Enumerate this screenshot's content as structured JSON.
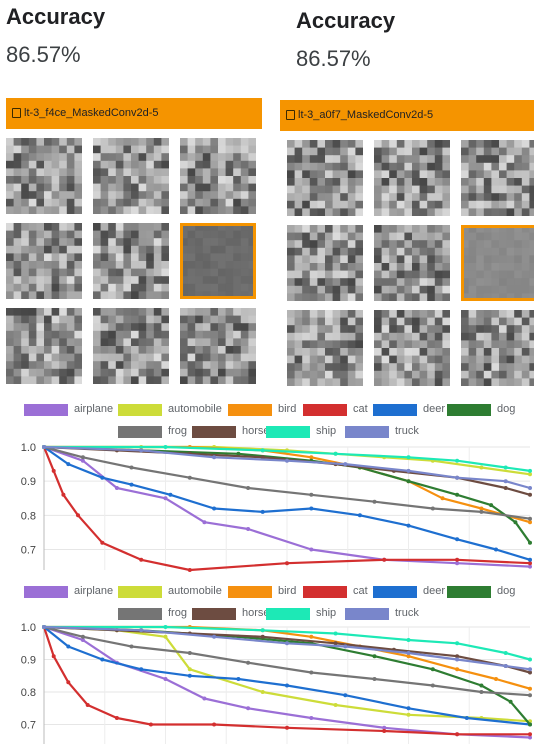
{
  "panels": [
    {
      "accuracy_title": "Accuracy",
      "accuracy_value": "86.57%",
      "run_name": "lt-3_f4ce_MaskedConv2d-5",
      "filters": [
        {
          "seed": 11,
          "selected": false
        },
        {
          "seed": 23,
          "selected": false
        },
        {
          "seed": 37,
          "selected": false
        },
        {
          "seed": 41,
          "selected": false
        },
        {
          "seed": 53,
          "selected": false
        },
        {
          "seed": 67,
          "selected": true,
          "masked": true,
          "tone": "#6b6b6b"
        },
        {
          "seed": 71,
          "selected": false
        },
        {
          "seed": 83,
          "selected": false
        },
        {
          "seed": 97,
          "selected": false
        }
      ]
    },
    {
      "accuracy_title": "Accuracy",
      "accuracy_value": "86.57%",
      "run_name": "lt-3_a0f7_MaskedConv2d-5",
      "filters": [
        {
          "seed": 13,
          "selected": false
        },
        {
          "seed": 29,
          "selected": false
        },
        {
          "seed": 31,
          "selected": false
        },
        {
          "seed": 43,
          "selected": false
        },
        {
          "seed": 59,
          "selected": false
        },
        {
          "seed": 61,
          "selected": true,
          "masked": true,
          "tone": "#8a8a8a"
        },
        {
          "seed": 73,
          "selected": false
        },
        {
          "seed": 89,
          "selected": false
        },
        {
          "seed": 101,
          "selected": false
        }
      ]
    }
  ],
  "legend": [
    {
      "name": "airplane",
      "color": "#9b6fd6"
    },
    {
      "name": "automobile",
      "color": "#cddc39"
    },
    {
      "name": "bird",
      "color": "#f5900f"
    },
    {
      "name": "cat",
      "color": "#d32f2f"
    },
    {
      "name": "deer",
      "color": "#1e6fd0"
    },
    {
      "name": "dog",
      "color": "#2e7d32"
    },
    {
      "name": "frog",
      "color": "#757575"
    },
    {
      "name": "horse",
      "color": "#6d4c41"
    },
    {
      "name": "ship",
      "color": "#1de9b6"
    },
    {
      "name": "truck",
      "color": "#7986cb"
    }
  ],
  "chart_data": [
    {
      "type": "line",
      "ylim": [
        0.64,
        1.0
      ],
      "yticks": [
        "1.0",
        "0.9",
        "0.8",
        "0.7"
      ],
      "ytick_values": [
        1.0,
        0.9,
        0.8,
        0.7
      ],
      "xlim": [
        0,
        1
      ],
      "grid": true,
      "series": [
        {
          "name": "airplane",
          "x": [
            0,
            0.08,
            0.15,
            0.25,
            0.33,
            0.42,
            0.55,
            0.7,
            0.85,
            1.0
          ],
          "values": [
            1.0,
            0.96,
            0.88,
            0.85,
            0.78,
            0.76,
            0.7,
            0.67,
            0.66,
            0.65
          ]
        },
        {
          "name": "automobile",
          "x": [
            0,
            0.2,
            0.35,
            0.5,
            0.6,
            0.7,
            0.8,
            0.9,
            1.0
          ],
          "values": [
            1.0,
            1.0,
            1.0,
            0.99,
            0.98,
            0.97,
            0.96,
            0.94,
            0.92
          ]
        },
        {
          "name": "bird",
          "x": [
            0,
            0.3,
            0.45,
            0.55,
            0.65,
            0.75,
            0.82,
            0.9,
            1.0
          ],
          "values": [
            1.0,
            1.0,
            0.99,
            0.97,
            0.94,
            0.9,
            0.85,
            0.82,
            0.78
          ]
        },
        {
          "name": "cat",
          "x": [
            0,
            0.02,
            0.04,
            0.07,
            0.12,
            0.2,
            0.3,
            0.5,
            0.7,
            0.85,
            1.0
          ],
          "values": [
            1.0,
            0.93,
            0.86,
            0.8,
            0.72,
            0.67,
            0.64,
            0.66,
            0.67,
            0.67,
            0.66
          ]
        },
        {
          "name": "deer",
          "x": [
            0,
            0.05,
            0.12,
            0.18,
            0.26,
            0.35,
            0.45,
            0.55,
            0.65,
            0.75,
            0.85,
            0.93,
            1.0
          ],
          "values": [
            1.0,
            0.95,
            0.91,
            0.89,
            0.86,
            0.82,
            0.81,
            0.82,
            0.8,
            0.77,
            0.73,
            0.7,
            0.67
          ]
        },
        {
          "name": "dog",
          "x": [
            0,
            0.2,
            0.4,
            0.55,
            0.65,
            0.75,
            0.85,
            0.92,
            0.97,
            1.0
          ],
          "values": [
            1.0,
            0.99,
            0.98,
            0.96,
            0.94,
            0.9,
            0.86,
            0.83,
            0.78,
            0.72
          ]
        },
        {
          "name": "frog",
          "x": [
            0,
            0.08,
            0.18,
            0.3,
            0.42,
            0.55,
            0.68,
            0.8,
            0.9,
            1.0
          ],
          "values": [
            1.0,
            0.97,
            0.94,
            0.91,
            0.88,
            0.86,
            0.84,
            0.82,
            0.81,
            0.79
          ]
        },
        {
          "name": "horse",
          "x": [
            0,
            0.15,
            0.3,
            0.45,
            0.6,
            0.72,
            0.85,
            0.95,
            1.0
          ],
          "values": [
            1.0,
            0.99,
            0.98,
            0.97,
            0.95,
            0.93,
            0.91,
            0.88,
            0.86
          ]
        },
        {
          "name": "ship",
          "x": [
            0,
            0.25,
            0.45,
            0.6,
            0.75,
            0.85,
            0.95,
            1.0
          ],
          "values": [
            1.0,
            1.0,
            0.99,
            0.98,
            0.97,
            0.96,
            0.94,
            0.93
          ]
        },
        {
          "name": "truck",
          "x": [
            0,
            0.2,
            0.35,
            0.5,
            0.62,
            0.75,
            0.85,
            0.95,
            1.0
          ],
          "values": [
            1.0,
            0.99,
            0.97,
            0.96,
            0.95,
            0.93,
            0.91,
            0.9,
            0.88
          ]
        }
      ]
    },
    {
      "type": "line",
      "ylim": [
        0.64,
        1.0
      ],
      "yticks": [
        "1.0",
        "0.9",
        "0.8",
        "0.7"
      ],
      "ytick_values": [
        1.0,
        0.9,
        0.8,
        0.7
      ],
      "xlim": [
        0,
        1
      ],
      "grid": true,
      "series": [
        {
          "name": "airplane",
          "x": [
            0,
            0.08,
            0.15,
            0.25,
            0.33,
            0.42,
            0.55,
            0.7,
            0.85,
            1.0
          ],
          "values": [
            1.0,
            0.96,
            0.89,
            0.84,
            0.78,
            0.75,
            0.72,
            0.69,
            0.67,
            0.66
          ]
        },
        {
          "name": "automobile",
          "x": [
            0,
            0.15,
            0.25,
            0.3,
            0.45,
            0.6,
            0.75,
            0.9,
            1.0
          ],
          "values": [
            1.0,
            0.99,
            0.97,
            0.87,
            0.8,
            0.76,
            0.73,
            0.72,
            0.71
          ]
        },
        {
          "name": "bird",
          "x": [
            0,
            0.3,
            0.45,
            0.55,
            0.65,
            0.75,
            0.85,
            0.93,
            1.0
          ],
          "values": [
            1.0,
            1.0,
            0.99,
            0.97,
            0.94,
            0.91,
            0.87,
            0.84,
            0.81
          ]
        },
        {
          "name": "cat",
          "x": [
            0,
            0.02,
            0.05,
            0.09,
            0.15,
            0.22,
            0.35,
            0.5,
            0.7,
            0.85,
            1.0
          ],
          "values": [
            1.0,
            0.91,
            0.83,
            0.76,
            0.72,
            0.7,
            0.7,
            0.69,
            0.68,
            0.67,
            0.67
          ]
        },
        {
          "name": "deer",
          "x": [
            0,
            0.05,
            0.12,
            0.2,
            0.3,
            0.4,
            0.5,
            0.62,
            0.75,
            0.87,
            1.0
          ],
          "values": [
            1.0,
            0.94,
            0.9,
            0.87,
            0.85,
            0.84,
            0.82,
            0.79,
            0.75,
            0.72,
            0.7
          ]
        },
        {
          "name": "dog",
          "x": [
            0,
            0.2,
            0.4,
            0.55,
            0.68,
            0.8,
            0.9,
            0.96,
            1.0
          ],
          "values": [
            1.0,
            0.99,
            0.97,
            0.95,
            0.91,
            0.87,
            0.82,
            0.77,
            0.7
          ]
        },
        {
          "name": "frog",
          "x": [
            0,
            0.08,
            0.18,
            0.3,
            0.42,
            0.55,
            0.68,
            0.8,
            0.9,
            1.0
          ],
          "values": [
            1.0,
            0.97,
            0.94,
            0.92,
            0.89,
            0.86,
            0.84,
            0.82,
            0.8,
            0.79
          ]
        },
        {
          "name": "horse",
          "x": [
            0,
            0.15,
            0.3,
            0.45,
            0.6,
            0.72,
            0.85,
            0.95,
            1.0
          ],
          "values": [
            1.0,
            0.99,
            0.98,
            0.97,
            0.95,
            0.93,
            0.91,
            0.88,
            0.86
          ]
        },
        {
          "name": "ship",
          "x": [
            0,
            0.25,
            0.45,
            0.6,
            0.75,
            0.85,
            0.95,
            1.0
          ],
          "values": [
            1.0,
            1.0,
            0.99,
            0.98,
            0.96,
            0.95,
            0.92,
            0.9
          ]
        },
        {
          "name": "truck",
          "x": [
            0,
            0.2,
            0.35,
            0.5,
            0.62,
            0.75,
            0.85,
            0.95,
            1.0
          ],
          "values": [
            1.0,
            0.99,
            0.97,
            0.95,
            0.94,
            0.92,
            0.9,
            0.88,
            0.87
          ]
        }
      ]
    }
  ]
}
